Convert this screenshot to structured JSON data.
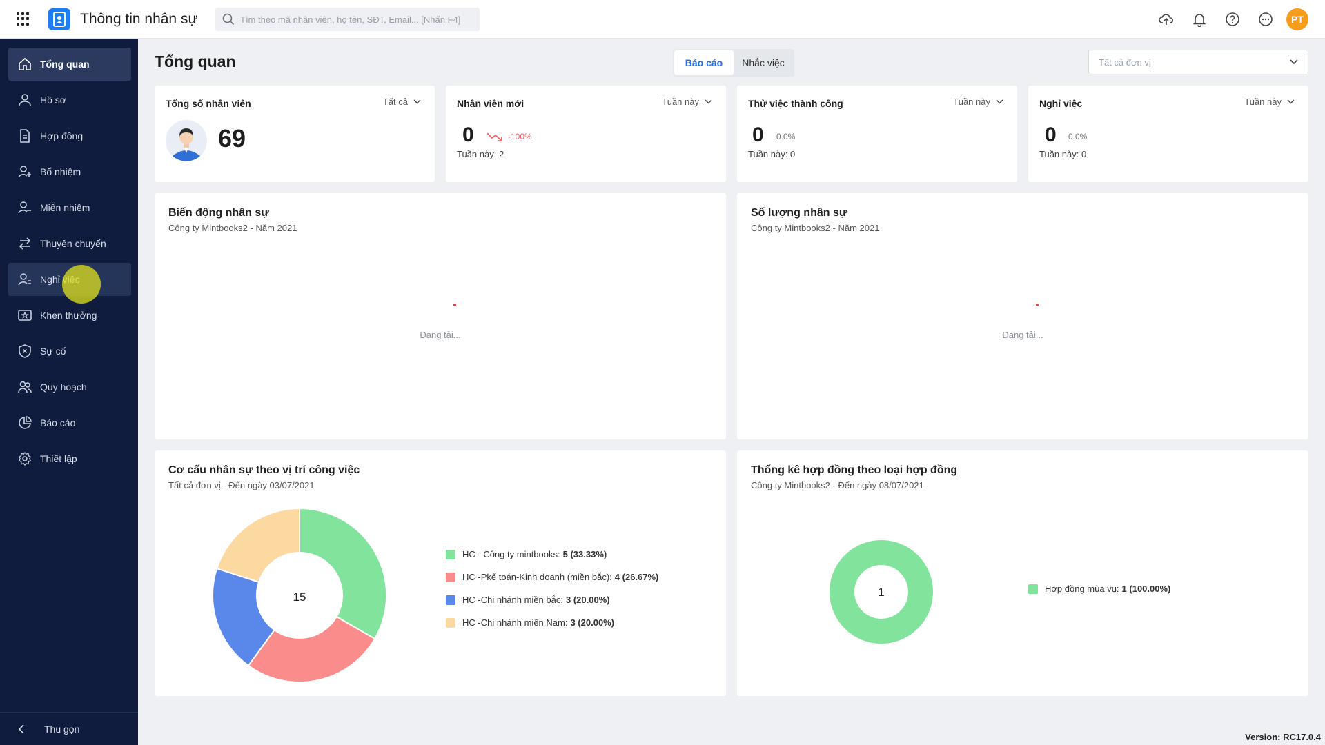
{
  "app": {
    "title": "Thông tin nhân sự"
  },
  "search": {
    "placeholder": "Tìm theo mã nhân viên, họ tên, SĐT, Email... [Nhấn F4]"
  },
  "user": {
    "initials": "PT"
  },
  "sidebar": {
    "items": [
      {
        "label": "Tổng quan",
        "icon": "home-icon"
      },
      {
        "label": "Hồ sơ",
        "icon": "user-icon"
      },
      {
        "label": "Hợp đồng",
        "icon": "document-icon"
      },
      {
        "label": "Bổ nhiệm",
        "icon": "user-plus-icon"
      },
      {
        "label": "Miễn nhiệm",
        "icon": "user-minus-icon"
      },
      {
        "label": "Thuyên chuyển",
        "icon": "transfer-icon"
      },
      {
        "label": "Nghỉ việc",
        "icon": "user-leave-icon"
      },
      {
        "label": "Khen thưởng",
        "icon": "award-icon"
      },
      {
        "label": "Sự cố",
        "icon": "shield-icon"
      },
      {
        "label": "Quy hoạch",
        "icon": "users-icon"
      },
      {
        "label": "Báo cáo",
        "icon": "pie-chart-icon"
      },
      {
        "label": "Thiết lập",
        "icon": "gear-icon"
      }
    ],
    "active_index": 0,
    "hover_index": 6,
    "collapse_label": "Thu gọn"
  },
  "page": {
    "title": "Tổng quan"
  },
  "tabs": [
    {
      "label": "Báo cáo",
      "active": true
    },
    {
      "label": "Nhắc việc",
      "active": false
    }
  ],
  "unit_filter": {
    "placeholder": "Tất cả đơn vị"
  },
  "kpis": [
    {
      "title": "Tổng số nhân viên",
      "filter": "Tất cả",
      "value": "69"
    },
    {
      "title": "Nhân viên mới",
      "filter": "Tuần này",
      "value": "0",
      "change": "-100%",
      "trend": "down",
      "sub": "Tuần này: 2"
    },
    {
      "title": "Thử việc thành công",
      "filter": "Tuần này",
      "value": "0",
      "change": "0.0%",
      "sub": "Tuần này: 0"
    },
    {
      "title": "Nghỉ việc",
      "filter": "Tuần này",
      "value": "0",
      "change": "0.0%",
      "sub": "Tuần này: 0"
    }
  ],
  "charts": {
    "movement": {
      "title": "Biến động nhân sự",
      "subtitle": "Công ty Mintbooks2 - Năm 2021",
      "loading": "Đang tải..."
    },
    "headcount": {
      "title": "Số lượng nhân sự",
      "subtitle": "Công ty Mintbooks2 - Năm 2021",
      "loading": "Đang tải..."
    },
    "structure": {
      "title": "Cơ cấu nhân sự theo vị trí công việc",
      "subtitle": "Tất cả đơn vị - Đến ngày 03/07/2021",
      "total": "15"
    },
    "contracts": {
      "title": "Thống kê hợp đồng theo loại hợp đồng",
      "subtitle": "Công ty Mintbooks2 - Đến ngày 08/07/2021",
      "total": "1"
    }
  },
  "chart_data": [
    {
      "type": "pie",
      "title": "Cơ cấu nhân sự theo vị trí công việc",
      "categories": [
        "HC - Công ty mintbooks",
        "HC -Pkế toán-Kinh doanh (miền bắc)",
        "HC -Chi nhánh miền bắc",
        "HC -Chi nhánh miền Nam"
      ],
      "values": [
        5,
        4,
        3,
        3
      ],
      "labels": [
        "5 (33.33%)",
        "4 (26.67%)",
        "3 (20.00%)",
        "3 (20.00%)"
      ],
      "colors": [
        "#82e39c",
        "#fa8c8c",
        "#5a87ea",
        "#fcd9a1"
      ],
      "center_label": "15",
      "legend": "right"
    },
    {
      "type": "pie",
      "title": "Thống kê hợp đồng theo loại hợp đồng",
      "categories": [
        "Hợp đồng mùa vụ"
      ],
      "values": [
        1
      ],
      "labels": [
        "1 (100.00%)"
      ],
      "colors": [
        "#82e39c"
      ],
      "center_label": "1",
      "legend": "right"
    }
  ],
  "footer": {
    "version": "Version: RC17.0.4"
  }
}
